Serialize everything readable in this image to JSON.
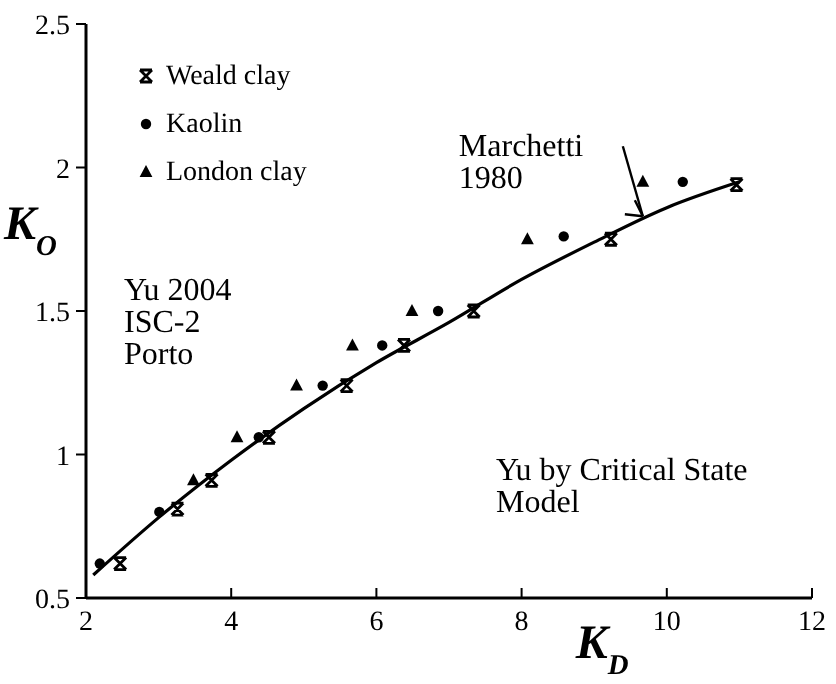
{
  "chart_data": {
    "type": "scatter",
    "xlabel": "K$_{D}$",
    "ylabel": "K$_{O}$",
    "xlim": [
      2,
      12
    ],
    "xticks": [
      2,
      4,
      6,
      8,
      10,
      12
    ],
    "ylim": [
      0.5,
      2.5
    ],
    "yticks": [
      0.5,
      1,
      1.5,
      2,
      2.5
    ],
    "grid": false,
    "legend": "top left",
    "series": [
      {
        "name": "Weald clay",
        "color": "#000000",
        "marker": "cross",
        "x": [
          2.47,
          3.26,
          3.73,
          4.52,
          5.59,
          6.38,
          7.34,
          9.23,
          10.96
        ],
        "values": [
          0.62,
          0.81,
          0.91,
          1.06,
          1.24,
          1.38,
          1.5,
          1.75,
          1.94
        ]
      },
      {
        "name": "Kaolin",
        "color": "#000000",
        "marker": "circle",
        "x": [
          2.19,
          3.01,
          4.38,
          5.26,
          6.08,
          6.85,
          8.58,
          10.22
        ],
        "values": [
          0.62,
          0.8,
          1.06,
          1.24,
          1.38,
          1.5,
          1.76,
          1.95
        ]
      },
      {
        "name": "London clay",
        "color": "#000000",
        "marker": "triangle",
        "x": [
          3.48,
          4.08,
          4.9,
          5.67,
          6.49,
          8.08,
          9.67
        ],
        "values": [
          0.91,
          1.06,
          1.24,
          1.38,
          1.5,
          1.75,
          1.95
        ]
      },
      {
        "type": "line",
        "color": "#000000",
        "marker": "none",
        "x": [
          2.1,
          3,
          4,
          5,
          6,
          7,
          8,
          9,
          10,
          11
        ],
        "values": [
          0.58,
          0.78,
          0.98,
          1.16,
          1.32,
          1.46,
          1.61,
          1.74,
          1.86,
          1.95
        ]
      }
    ],
    "annotations": [
      {
        "text": "Marchetti\n1980",
        "x": 9.67,
        "y": 1.83
      },
      "Yu 2004\nISC-2\nPorto",
      "Yu by Critical State\nModel"
    ]
  }
}
